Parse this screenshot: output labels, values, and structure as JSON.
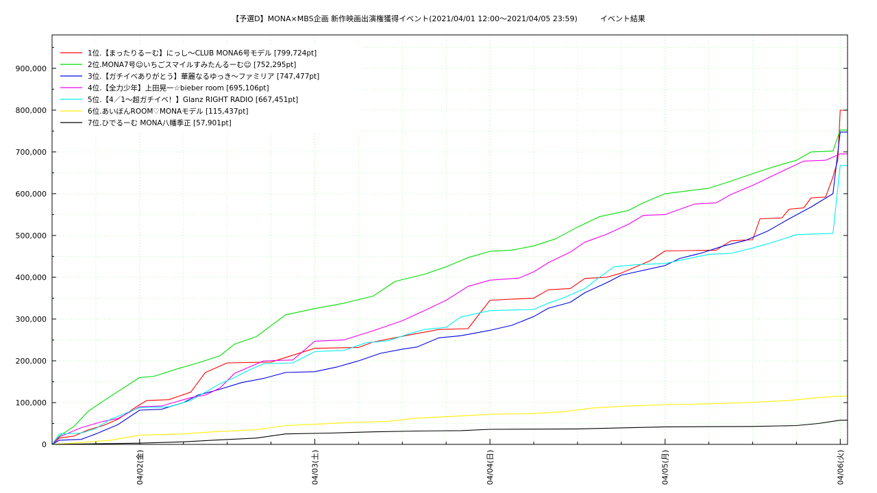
{
  "chart_data": {
    "type": "line",
    "title": "【予選D】MONA×MBS企画 新作映画出演権獲得イベント(2021/04/01 12:00〜2021/04/05 23:59)　　　イベント結果",
    "xlabel": "",
    "ylabel": "",
    "x_tick_labels": [
      "04/02(金)",
      "04/03(土)",
      "04/04(日)",
      "04/05(月)",
      "04/06(火)"
    ],
    "x_tick_dates": [
      "2021-04-02",
      "2021-04-03",
      "2021-04-04",
      "2021-04-05",
      "2021-04-06"
    ],
    "xlim": [
      "2021-04-01 12:00",
      "2021-04-06 01:00"
    ],
    "ylim": [
      0,
      980000
    ],
    "y_ticks": [
      0,
      100000,
      200000,
      300000,
      400000,
      500000,
      600000,
      700000,
      800000,
      900000
    ],
    "y_tick_labels": [
      "0",
      "100,000",
      "200,000",
      "300,000",
      "400,000",
      "500,000",
      "600,000",
      "700,000",
      "800,000",
      "900,000"
    ],
    "grid": true,
    "legend_position": "top-left",
    "series": [
      {
        "name": "1位.【まったりるーむ】にっし〜CLUB MONA6号モデル [799,724pt]",
        "color": "#ff0000",
        "points": [
          [
            "04/01 12:00",
            0
          ],
          [
            "04/01 13:00",
            15000
          ],
          [
            "04/01 15:00",
            20000
          ],
          [
            "04/01 17:00",
            35000
          ],
          [
            "04/01 19:00",
            45000
          ],
          [
            "04/01 21:00",
            60000
          ],
          [
            "04/02 00:00",
            95000
          ],
          [
            "04/02 01:00",
            105000
          ],
          [
            "04/02 04:00",
            107000
          ],
          [
            "04/02 07:00",
            125000
          ],
          [
            "04/02 09:00",
            172000
          ],
          [
            "04/02 12:00",
            195000
          ],
          [
            "04/02 18:00",
            197000
          ],
          [
            "04/03 00:00",
            230000
          ],
          [
            "04/03 06:00",
            232000
          ],
          [
            "04/03 08:00",
            245000
          ],
          [
            "04/03 13:00",
            262000
          ],
          [
            "04/03 17:00",
            275000
          ],
          [
            "04/03 21:00",
            277000
          ],
          [
            "04/04 00:00",
            345000
          ],
          [
            "04/04 06:00",
            350000
          ],
          [
            "04/04 08:00",
            370000
          ],
          [
            "04/04 11:00",
            373000
          ],
          [
            "04/04 13:00",
            397000
          ],
          [
            "04/04 16:00",
            400000
          ],
          [
            "04/04 18:00",
            410000
          ],
          [
            "04/04 22:00",
            440000
          ],
          [
            "04/05 00:00",
            463000
          ],
          [
            "04/05 07:00",
            465000
          ],
          [
            "04/05 09:00",
            487000
          ],
          [
            "04/05 12:00",
            490000
          ],
          [
            "04/05 13:00",
            540000
          ],
          [
            "04/05 16:00",
            542000
          ],
          [
            "04/05 17:00",
            563000
          ],
          [
            "04/05 19:00",
            566000
          ],
          [
            "04/05 20:00",
            590000
          ],
          [
            "04/05 22:00",
            592000
          ],
          [
            "04/05 23:00",
            640000
          ],
          [
            "04/05 23:40",
            680000
          ],
          [
            "04/06 00:00",
            799724
          ],
          [
            "04/06 01:00",
            799724
          ]
        ]
      },
      {
        "name": "2位.MONA7号☺いちごスマイルすみたんるーむ☺ [752,295pt]",
        "color": "#00dd00",
        "points": [
          [
            "04/01 12:00",
            0
          ],
          [
            "04/01 13:00",
            20000
          ],
          [
            "04/01 15:00",
            43000
          ],
          [
            "04/01 17:00",
            80000
          ],
          [
            "04/01 20:00",
            115000
          ],
          [
            "04/02 00:00",
            160000
          ],
          [
            "04/02 02:00",
            163000
          ],
          [
            "04/02 05:00",
            180000
          ],
          [
            "04/02 08:00",
            195000
          ],
          [
            "04/02 11:00",
            212000
          ],
          [
            "04/02 13:00",
            240000
          ],
          [
            "04/02 16:00",
            258000
          ],
          [
            "04/02 20:00",
            310000
          ],
          [
            "04/03 00:00",
            325000
          ],
          [
            "04/03 04:00",
            338000
          ],
          [
            "04/03 08:00",
            355000
          ],
          [
            "04/03 11:00",
            390000
          ],
          [
            "04/03 15:00",
            407000
          ],
          [
            "04/03 18:00",
            425000
          ],
          [
            "04/03 21:00",
            447000
          ],
          [
            "04/04 00:00",
            462000
          ],
          [
            "04/04 03:00",
            465000
          ],
          [
            "04/04 06:00",
            475000
          ],
          [
            "04/04 09:00",
            492000
          ],
          [
            "04/04 12:00",
            520000
          ],
          [
            "04/04 15:00",
            545000
          ],
          [
            "04/04 19:00",
            560000
          ],
          [
            "04/04 21:00",
            578000
          ],
          [
            "04/05 00:00",
            600000
          ],
          [
            "04/05 06:00",
            613000
          ],
          [
            "04/05 09:00",
            630000
          ],
          [
            "04/05 12:00",
            648000
          ],
          [
            "04/05 15:00",
            665000
          ],
          [
            "04/05 18:00",
            680000
          ],
          [
            "04/05 20:00",
            700000
          ],
          [
            "04/05 23:00",
            702000
          ],
          [
            "04/06 00:00",
            752295
          ],
          [
            "04/06 01:00",
            752295
          ]
        ]
      },
      {
        "name": "3位.【ガチイベありがとう】華麗なるゆっき〜ファミリア [747,477pt]",
        "color": "#0000dd",
        "points": [
          [
            "04/01 12:00",
            0
          ],
          [
            "04/01 13:00",
            10000
          ],
          [
            "04/01 16:00",
            12000
          ],
          [
            "04/01 18:00",
            25000
          ],
          [
            "04/01 21:00",
            47000
          ],
          [
            "04/02 00:00",
            82000
          ],
          [
            "04/02 03:00",
            84000
          ],
          [
            "04/02 06:00",
            100000
          ],
          [
            "04/02 08:00",
            118000
          ],
          [
            "04/02 11:00",
            132000
          ],
          [
            "04/02 14:00",
            148000
          ],
          [
            "04/02 17:00",
            158000
          ],
          [
            "04/02 20:00",
            172000
          ],
          [
            "04/03 00:00",
            174000
          ],
          [
            "04/03 03:00",
            185000
          ],
          [
            "04/03 06:00",
            200000
          ],
          [
            "04/03 09:00",
            218000
          ],
          [
            "04/03 12:00",
            228000
          ],
          [
            "04/03 14:00",
            233000
          ],
          [
            "04/03 17:00",
            255000
          ],
          [
            "04/03 20:00",
            260000
          ],
          [
            "04/04 00:00",
            273000
          ],
          [
            "04/04 03:00",
            285000
          ],
          [
            "04/04 06:00",
            306000
          ],
          [
            "04/04 08:00",
            326000
          ],
          [
            "04/04 11:00",
            340000
          ],
          [
            "04/04 13:00",
            363000
          ],
          [
            "04/04 16:00",
            387000
          ],
          [
            "04/04 18:00",
            405000
          ],
          [
            "04/05 00:00",
            428000
          ],
          [
            "04/05 02:00",
            445000
          ],
          [
            "04/05 05:00",
            458000
          ],
          [
            "04/05 08:00",
            475000
          ],
          [
            "04/05 11:00",
            488000
          ],
          [
            "04/05 14:00",
            510000
          ],
          [
            "04/05 17:00",
            540000
          ],
          [
            "04/05 20:00",
            568000
          ],
          [
            "04/05 23:00",
            600000
          ],
          [
            "04/06 00:00",
            747477
          ],
          [
            "04/06 01:00",
            747477
          ]
        ]
      },
      {
        "name": "4位.【全力少年】上田晃一☆bieber room [695,106pt]",
        "color": "#ee00ee",
        "points": [
          [
            "04/01 12:00",
            0
          ],
          [
            "04/01 13:00",
            18000
          ],
          [
            "04/01 16:00",
            40000
          ],
          [
            "04/01 19:00",
            55000
          ],
          [
            "04/01 21:00",
            62000
          ],
          [
            "04/02 00:00",
            90000
          ],
          [
            "04/02 03:00",
            92000
          ],
          [
            "04/02 07:00",
            112000
          ],
          [
            "04/02 09:00",
            118000
          ],
          [
            "04/02 11:00",
            135000
          ],
          [
            "04/02 13:00",
            170000
          ],
          [
            "04/02 17:00",
            200000
          ],
          [
            "04/02 21:00",
            202000
          ],
          [
            "04/03 00:00",
            247000
          ],
          [
            "04/03 04:00",
            250000
          ],
          [
            "04/03 08:00",
            272000
          ],
          [
            "04/03 12:00",
            296000
          ],
          [
            "04/03 15:00",
            320000
          ],
          [
            "04/03 18:00",
            345000
          ],
          [
            "04/03 21:00",
            378000
          ],
          [
            "04/04 00:00",
            393000
          ],
          [
            "04/04 04:00",
            398000
          ],
          [
            "04/04 06:00",
            413000
          ],
          [
            "04/04 08:00",
            435000
          ],
          [
            "04/04 11:00",
            460000
          ],
          [
            "04/04 13:00",
            484000
          ],
          [
            "04/04 16:00",
            503000
          ],
          [
            "04/04 19:00",
            527000
          ],
          [
            "04/04 21:00",
            548000
          ],
          [
            "04/05 00:00",
            550000
          ],
          [
            "04/05 04:00",
            575000
          ],
          [
            "04/05 07:00",
            578000
          ],
          [
            "04/05 09:00",
            598000
          ],
          [
            "04/05 12:00",
            620000
          ],
          [
            "04/05 15:00",
            645000
          ],
          [
            "04/05 19:00",
            678000
          ],
          [
            "04/05 22:00",
            680000
          ],
          [
            "04/06 00:00",
            695106
          ],
          [
            "04/06 01:00",
            695106
          ]
        ]
      },
      {
        "name": "5位.【4／1〜超ガチイベ！】Glanz RIGHT RADIO [667,451pt]",
        "color": "#00eeee",
        "points": [
          [
            "04/01 12:00",
            0
          ],
          [
            "04/01 13:00",
            25000
          ],
          [
            "04/01 16:00",
            27000
          ],
          [
            "04/01 18:00",
            38000
          ],
          [
            "04/01 20:00",
            60000
          ],
          [
            "04/02 00:00",
            88000
          ],
          [
            "04/02 04:00",
            90000
          ],
          [
            "04/02 07:00",
            105000
          ],
          [
            "04/02 09:00",
            125000
          ],
          [
            "04/02 11:00",
            145000
          ],
          [
            "04/02 13:00",
            160000
          ],
          [
            "04/02 15:00",
            178000
          ],
          [
            "04/02 17:00",
            193000
          ],
          [
            "04/02 21:00",
            195000
          ],
          [
            "04/03 00:00",
            222000
          ],
          [
            "04/03 04:00",
            225000
          ],
          [
            "04/03 07:00",
            243000
          ],
          [
            "04/03 10:00",
            248000
          ],
          [
            "04/03 13:00",
            265000
          ],
          [
            "04/03 15:00",
            275000
          ],
          [
            "04/03 18:00",
            280000
          ],
          [
            "04/03 20:00",
            305000
          ],
          [
            "04/04 00:00",
            320000
          ],
          [
            "04/04 06:00",
            323000
          ],
          [
            "04/04 08:00",
            338000
          ],
          [
            "04/04 10:00",
            350000
          ],
          [
            "04/04 13:00",
            373000
          ],
          [
            "04/04 15:00",
            400000
          ],
          [
            "04/04 17:00",
            425000
          ],
          [
            "04/04 20:00",
            430000
          ],
          [
            "04/05 00:00",
            433000
          ],
          [
            "04/05 06:00",
            455000
          ],
          [
            "04/05 09:00",
            457000
          ],
          [
            "04/05 12:00",
            470000
          ],
          [
            "04/05 15:00",
            485000
          ],
          [
            "04/05 18:00",
            502000
          ],
          [
            "04/05 23:00",
            505000
          ],
          [
            "04/06 00:00",
            667451
          ],
          [
            "04/06 01:00",
            667451
          ]
        ]
      },
      {
        "name": "6位.あいぼんROOM♡MONAモデル [115,437pt]",
        "color": "#ffee00",
        "points": [
          [
            "04/01 12:00",
            0
          ],
          [
            "04/01 15:00",
            3000
          ],
          [
            "04/01 20:00",
            10000
          ],
          [
            "04/02 00:00",
            22000
          ],
          [
            "04/02 06:00",
            25000
          ],
          [
            "04/02 10:00",
            30000
          ],
          [
            "04/02 16:00",
            35000
          ],
          [
            "04/02 20:00",
            45000
          ],
          [
            "04/03 00:00",
            48000
          ],
          [
            "04/03 04:00",
            52000
          ],
          [
            "04/03 10:00",
            55000
          ],
          [
            "04/03 14:00",
            63000
          ],
          [
            "04/03 19:00",
            67000
          ],
          [
            "04/04 00:00",
            72000
          ],
          [
            "04/04 06:00",
            74000
          ],
          [
            "04/04 10:00",
            78000
          ],
          [
            "04/04 14:00",
            87000
          ],
          [
            "04/04 19:00",
            92000
          ],
          [
            "04/05 00:00",
            95000
          ],
          [
            "04/05 06:00",
            97000
          ],
          [
            "04/05 11:00",
            100000
          ],
          [
            "04/05 17:00",
            105000
          ],
          [
            "04/05 21:00",
            112000
          ],
          [
            "04/06 00:00",
            115437
          ],
          [
            "04/06 01:00",
            115437
          ]
        ]
      },
      {
        "name": "7位.ひでるーむ MONA八幡季正 [57,901pt]",
        "color": "#000000",
        "points": [
          [
            "04/01 12:00",
            0
          ],
          [
            "04/01 16:00",
            1000
          ],
          [
            "04/02 00:00",
            3000
          ],
          [
            "04/02 06:00",
            6000
          ],
          [
            "04/02 10:00",
            10000
          ],
          [
            "04/02 16:00",
            15000
          ],
          [
            "04/02 20:00",
            25000
          ],
          [
            "04/03 02:00",
            27000
          ],
          [
            "04/03 08:00",
            30000
          ],
          [
            "04/03 14:00",
            32000
          ],
          [
            "04/03 20:00",
            33000
          ],
          [
            "04/04 00:00",
            36000
          ],
          [
            "04/04 12:00",
            37000
          ],
          [
            "04/05 00:00",
            42000
          ],
          [
            "04/05 12:00",
            43000
          ],
          [
            "04/05 18:00",
            45000
          ],
          [
            "04/05 21:00",
            50000
          ],
          [
            "04/06 00:00",
            57901
          ],
          [
            "04/06 01:00",
            57901
          ]
        ]
      }
    ]
  }
}
